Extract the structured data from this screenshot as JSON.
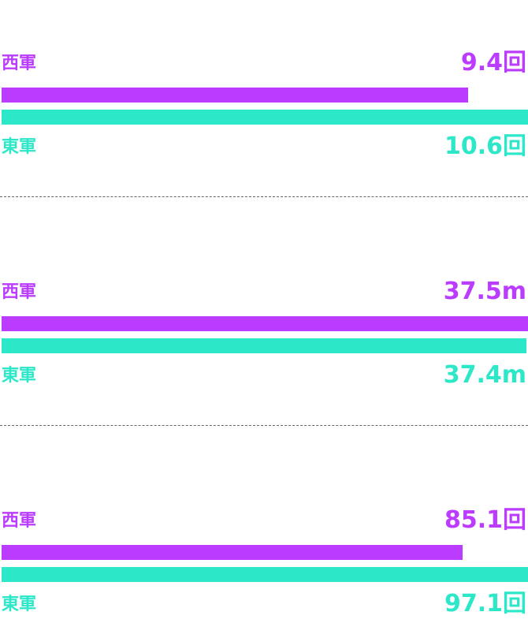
{
  "colors": {
    "west": "#bb3bff",
    "east": "#2ce8c9",
    "divider": "#666666"
  },
  "chart_data": [
    {
      "type": "bar",
      "orientation": "horizontal",
      "unit": "回",
      "series": [
        {
          "name": "西軍",
          "value": 9.4,
          "label": "9.4回"
        },
        {
          "name": "東軍",
          "value": 10.6,
          "label": "10.6回"
        }
      ]
    },
    {
      "type": "bar",
      "orientation": "horizontal",
      "unit": "m",
      "series": [
        {
          "name": "西軍",
          "value": 37.5,
          "label": "37.5m"
        },
        {
          "name": "東軍",
          "value": 37.4,
          "label": "37.4m"
        }
      ]
    },
    {
      "type": "bar",
      "orientation": "horizontal",
      "unit": "回",
      "series": [
        {
          "name": "西軍",
          "value": 85.1,
          "label": "85.1回"
        },
        {
          "name": "東軍",
          "value": 97.1,
          "label": "97.1回"
        }
      ]
    }
  ]
}
